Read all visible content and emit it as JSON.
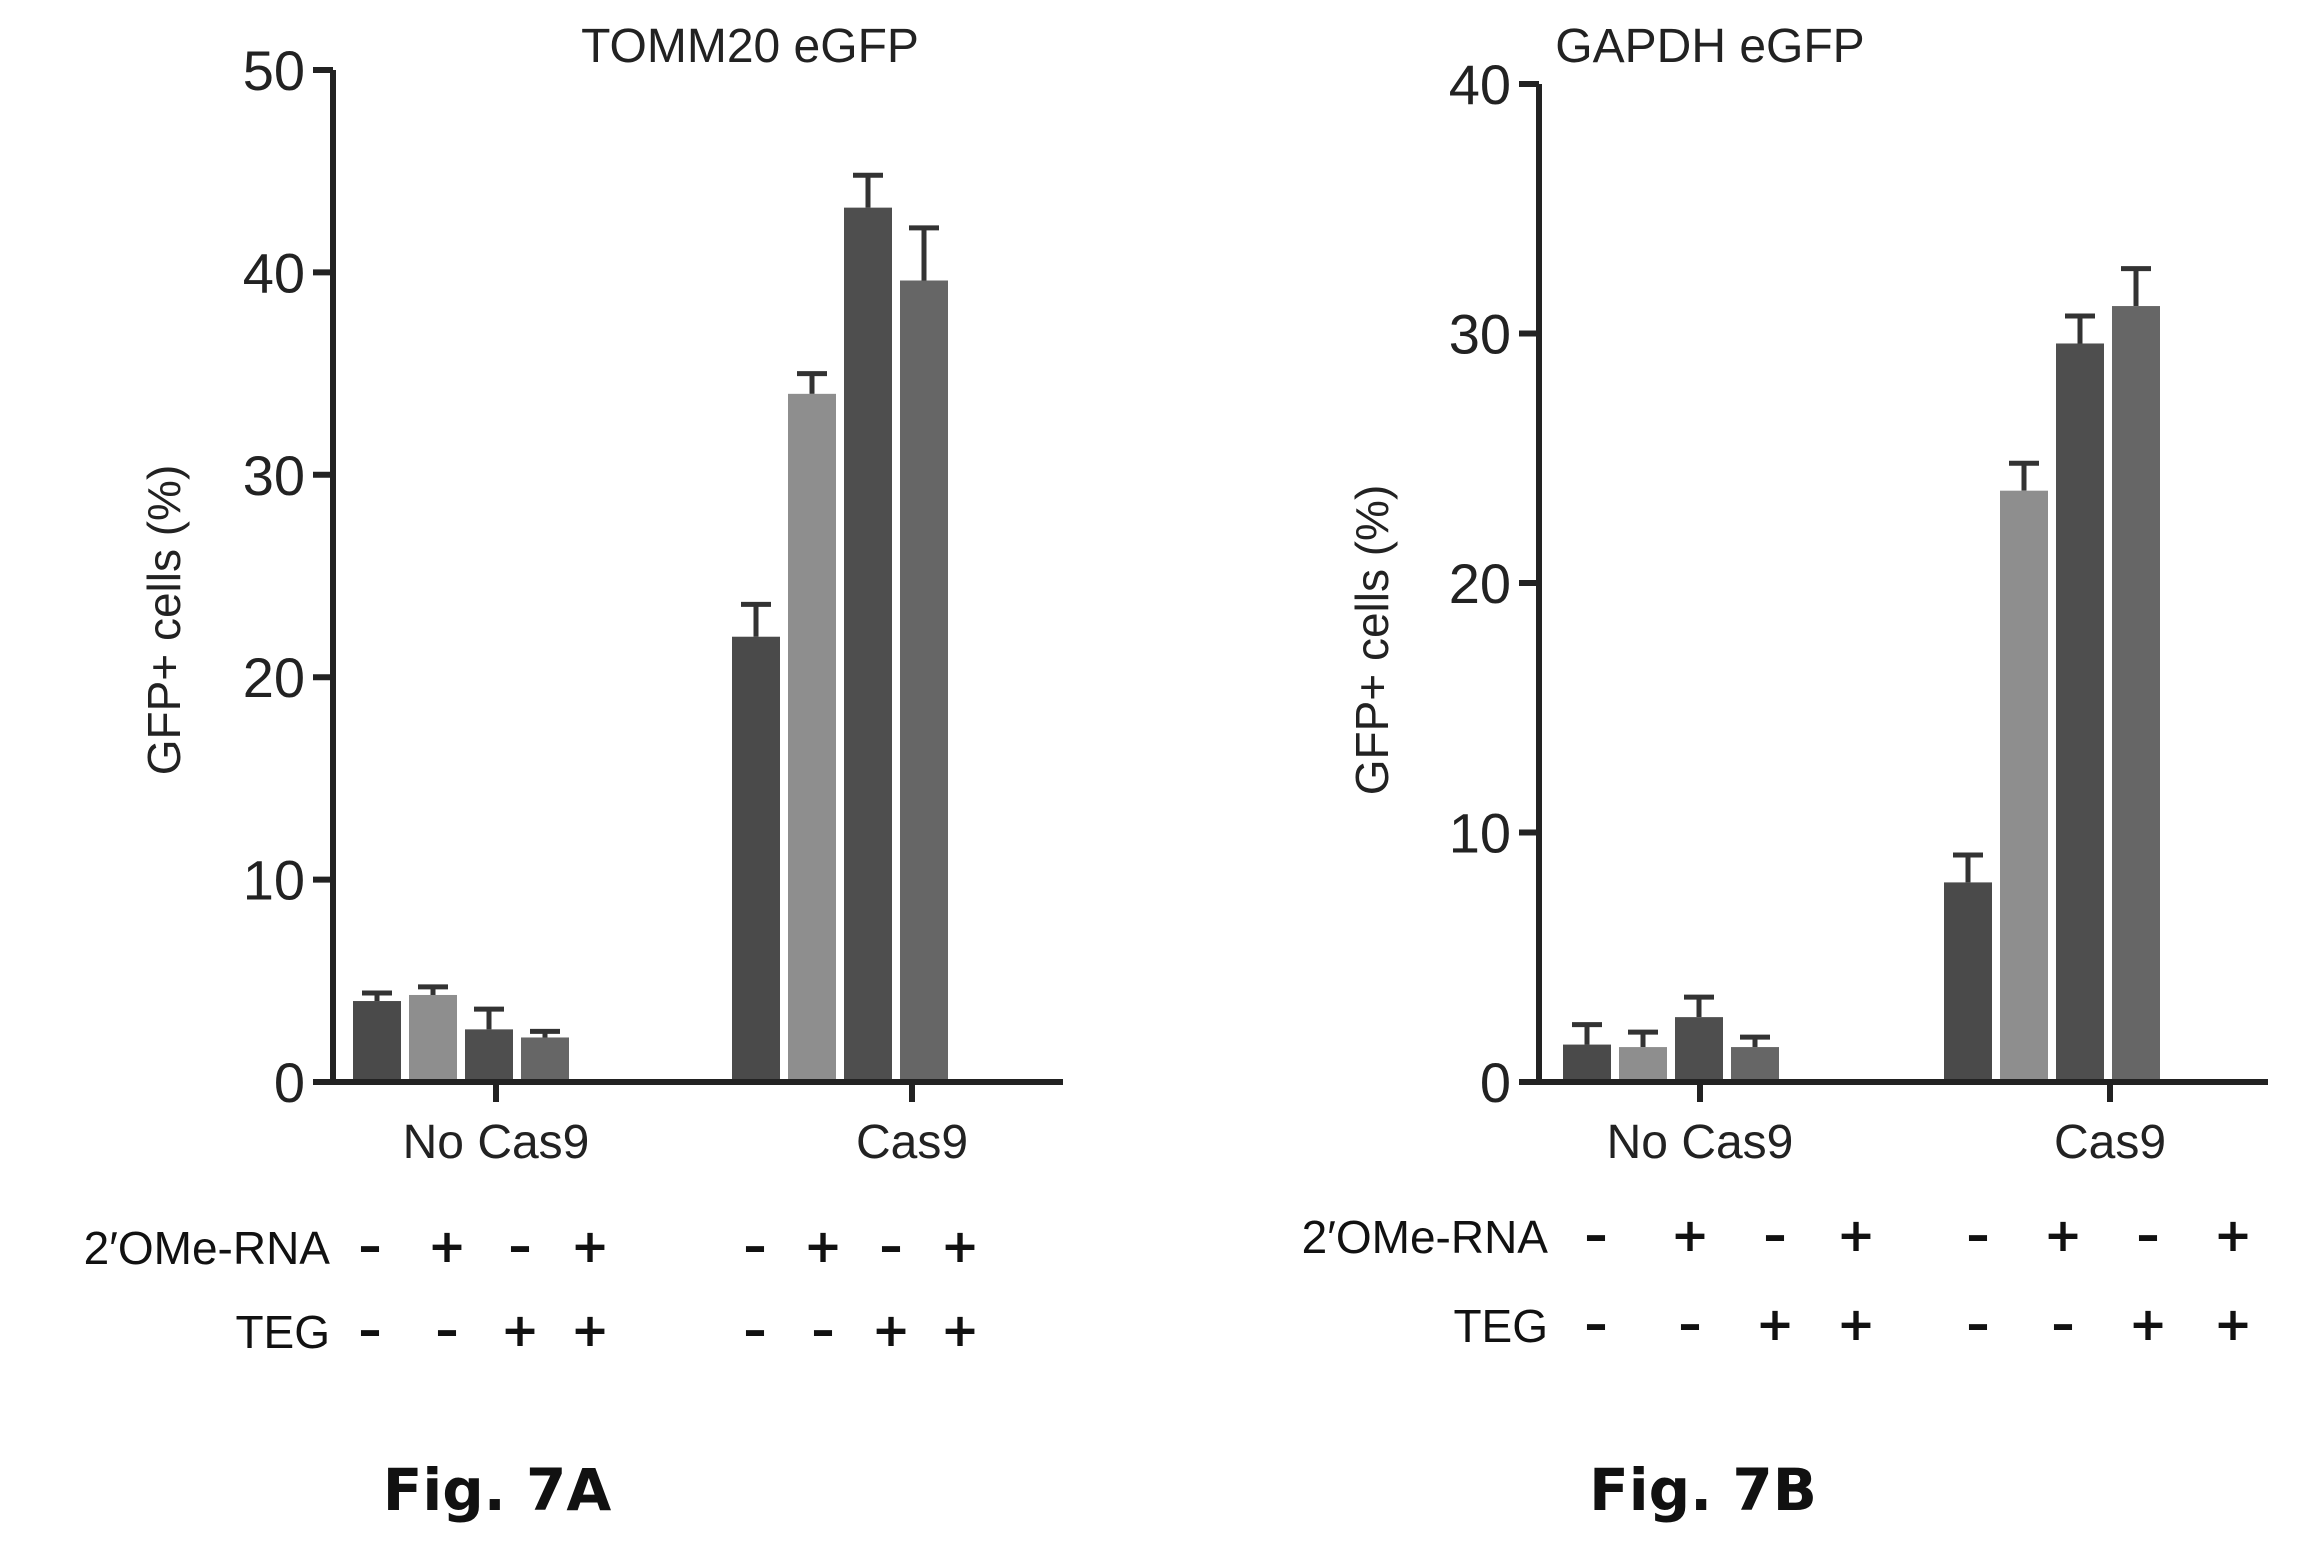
{
  "chart_data": [
    {
      "type": "bar",
      "title": "TOMM20 eGFP",
      "ylabel": "GFP+ cells (%)",
      "ylim": [
        0,
        50
      ],
      "yticks": [
        "0",
        "10",
        "20",
        "30",
        "40",
        "50"
      ],
      "categories": [
        "No Cas9",
        "Cas9"
      ],
      "series": [
        {
          "values": [
            4.0,
            22.0
          ],
          "errors": [
            0.4,
            1.6
          ],
          "color": "#4a4a4a"
        },
        {
          "values": [
            4.3,
            34.0
          ],
          "errors": [
            0.4,
            1.0
          ],
          "color": "#8e8e8e"
        },
        {
          "values": [
            2.6,
            43.2
          ],
          "errors": [
            1.0,
            1.6
          ],
          "color": "#4e4e4e"
        },
        {
          "values": [
            2.2,
            39.6
          ],
          "errors": [
            0.3,
            2.6
          ],
          "color": "#666666"
        }
      ],
      "treatment_rows": [
        {
          "label": "2′OMe-RNA",
          "signs": [
            "–",
            "+",
            "–",
            "+",
            "–",
            "+",
            "–",
            "+"
          ]
        },
        {
          "label": "TEG",
          "signs": [
            "–",
            "–",
            "+",
            "+",
            "–",
            "–",
            "+",
            "+"
          ]
        }
      ],
      "figure_label": "Fig. 7A"
    },
    {
      "type": "bar",
      "title": "GAPDH eGFP",
      "ylabel": "GFP+ cells (%)",
      "ylim": [
        0,
        40
      ],
      "yticks": [
        "0",
        "10",
        "20",
        "30",
        "40"
      ],
      "categories": [
        "No Cas9",
        "Cas9"
      ],
      "series": [
        {
          "values": [
            1.5,
            8.0
          ],
          "errors": [
            0.8,
            1.1
          ],
          "color": "#4a4a4a"
        },
        {
          "values": [
            1.4,
            23.7
          ],
          "errors": [
            0.6,
            1.1
          ],
          "color": "#8e8e8e"
        },
        {
          "values": [
            2.6,
            29.6
          ],
          "errors": [
            0.8,
            1.1
          ],
          "color": "#4e4e4e"
        },
        {
          "values": [
            1.4,
            31.1
          ],
          "errors": [
            0.4,
            1.5
          ],
          "color": "#666666"
        }
      ],
      "treatment_rows": [
        {
          "label": "2′OMe-RNA",
          "signs": [
            "–",
            "+",
            "–",
            "+",
            "–",
            "+",
            "–",
            "+"
          ]
        },
        {
          "label": "TEG",
          "signs": [
            "–",
            "–",
            "+",
            "+",
            "–",
            "–",
            "+",
            "+"
          ]
        }
      ],
      "figure_label": "Fig. 7B"
    }
  ]
}
